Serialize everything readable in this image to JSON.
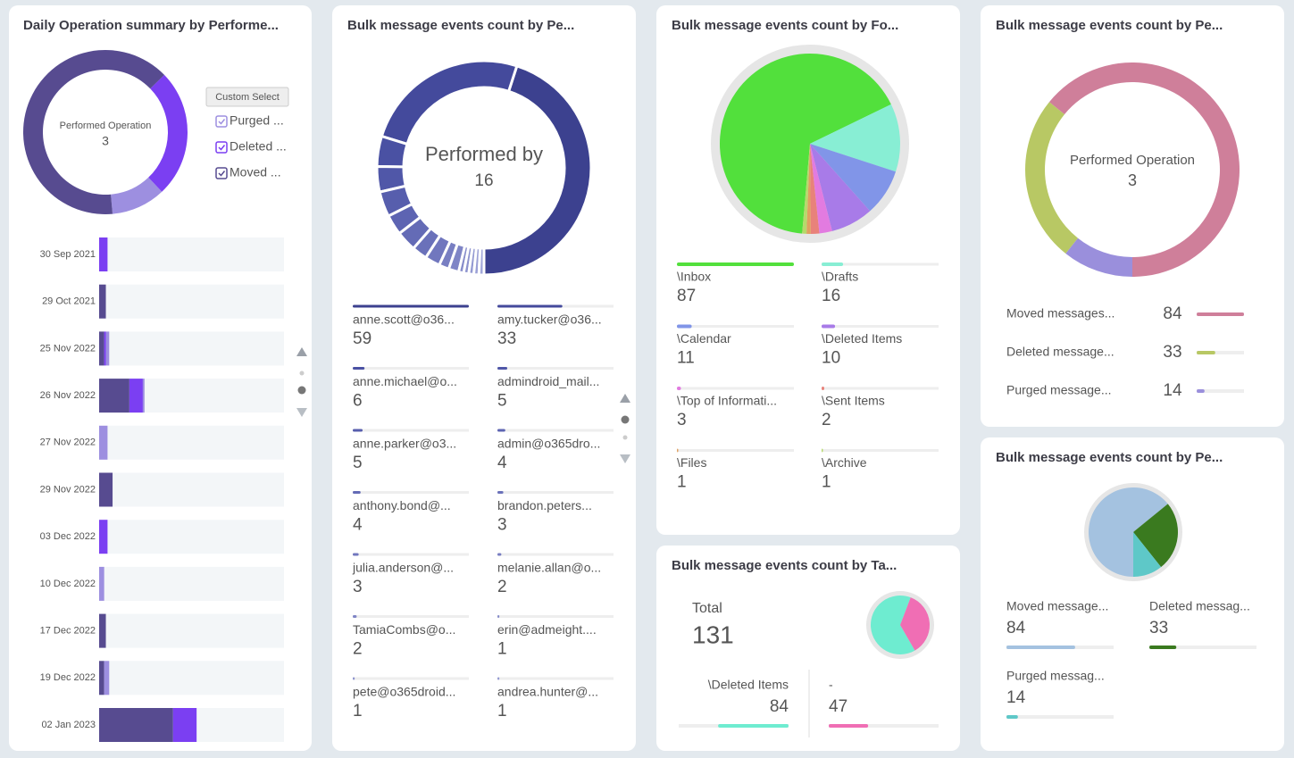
{
  "chart_data": [
    {
      "type": "donut",
      "title": "Daily Operation summary by Performe...",
      "center_label": "Performed Operation",
      "center_value": 3,
      "button": "Custom Select",
      "categories": [
        "Purged ...",
        "Deleted ...",
        "Moved ..."
      ],
      "values": [
        14,
        33,
        84
      ],
      "colors": [
        "#9d8fe0",
        "#7b3ff2",
        "#574b90"
      ]
    },
    {
      "type": "stacked-barh",
      "categories": [
        "30 Sep 2021",
        "29 Oct 2021",
        "25 Nov 2022",
        "26 Nov 2022",
        "27 Nov 2022",
        "29 Nov 2022",
        "03 Dec 2022",
        "10 Dec 2022",
        "17 Dec 2022",
        "19 Dec 2022",
        "02 Jan 2023"
      ],
      "xlim": [
        0,
        110
      ],
      "series": [
        {
          "color": "#574b90",
          "values": [
            0,
            4,
            3,
            18,
            0,
            8,
            0,
            0,
            4,
            3,
            44
          ]
        },
        {
          "color": "#7b3ff2",
          "values": [
            5,
            0,
            1,
            8,
            0,
            0,
            5,
            0,
            0,
            0,
            14
          ]
        },
        {
          "color": "#9d8fe0",
          "values": [
            0,
            0,
            2,
            1,
            5,
            0,
            0,
            3,
            0,
            3,
            0
          ]
        }
      ]
    },
    {
      "type": "donut",
      "title": "Bulk message events count by Pe...",
      "center_label": "Performed by",
      "center_value": 16,
      "categories": [
        "anne.scott@o36...",
        "amy.tucker@o36...",
        "anne.michael@o...",
        "admindroid_mail...",
        "anne.parker@o3...",
        "admin@o365dro...",
        "anthony.bond@...",
        "brandon.peters...",
        "julia.anderson@...",
        "melanie.allan@o...",
        "TamiaCombs@o...",
        "erin@admeight....",
        "pete@o365droid...",
        "andrea.hunter@...",
        null,
        null
      ],
      "values": [
        59,
        33,
        6,
        5,
        5,
        4,
        4,
        3,
        3,
        2,
        2,
        1,
        1,
        1,
        1,
        1
      ],
      "colors": [
        "#3c418f",
        "#444a9c",
        "#4a51a3",
        "#5057a8",
        "#575ead",
        "#5d64b2",
        "#646bb6",
        "#6a71ba",
        "#7177be",
        "#787ec2",
        "#7f85c6",
        "#868cca",
        "#8d93ce",
        "#949ad2",
        "#9ba0d6",
        "#a2a7da"
      ]
    },
    {
      "type": "pie",
      "title": "Bulk message events count by Fo...",
      "categories": [
        "\\Inbox",
        "\\Drafts",
        "\\Calendar",
        "\\Deleted Items",
        "\\Top of Informati...",
        "\\Sent Items",
        "\\Files",
        "\\Archive"
      ],
      "values": [
        87,
        16,
        11,
        10,
        3,
        2,
        1,
        1
      ],
      "colors": [
        "#52e03c",
        "#88eed4",
        "#8195e8",
        "#a87be8",
        "#e27be0",
        "#e8827a",
        "#e0a060",
        "#b6d96b"
      ]
    },
    {
      "type": "pie",
      "title": "Bulk message events count by Ta...",
      "total_label": "Total",
      "total": 131,
      "categories": [
        "\\Deleted Items",
        "-"
      ],
      "values": [
        84,
        47
      ],
      "colors": [
        "#6eecd0",
        "#f06eb4"
      ]
    },
    {
      "type": "donut",
      "title": "Bulk message events count by Pe...",
      "center_label": "Performed Operation",
      "center_value": 3,
      "categories": [
        "Moved messages...",
        "Deleted message...",
        "Purged message..."
      ],
      "values": [
        84,
        33,
        14
      ],
      "colors": [
        "#cf7f9a",
        "#b8c864",
        "#9a8fdc"
      ]
    },
    {
      "type": "pie",
      "title": "Bulk message events count by Pe...",
      "categories": [
        "Moved message...",
        "Deleted messag...",
        "Purged messag..."
      ],
      "values": [
        84,
        33,
        14
      ],
      "colors": [
        "#a4c2e0",
        "#3a7a1f",
        "#5ec8c8"
      ]
    }
  ]
}
